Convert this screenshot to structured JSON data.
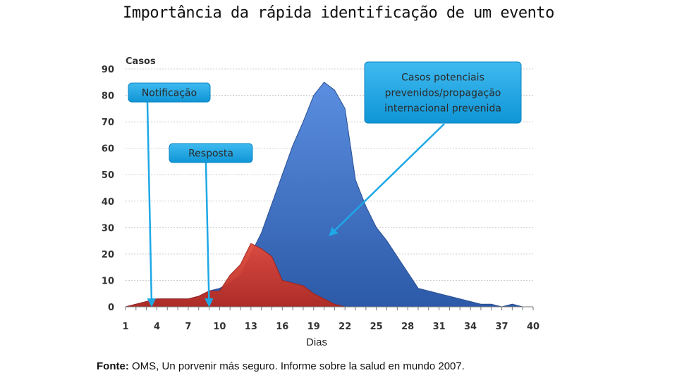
{
  "title": "Importância da rápida identificação de um evento",
  "source": {
    "label": "Fonte:",
    "text": " OMS, Un porvenir más seguro. Informe sobre la salud en mundo 2007."
  },
  "colors": {
    "blue": "#3d73c4",
    "red": "#c8322a",
    "callout": "#1ea8e6",
    "arrow": "#1ea8e6"
  },
  "chart_data": {
    "type": "area",
    "title": "",
    "xlabel": "Dias",
    "ylabel": "Casos",
    "xlim": [
      1,
      40
    ],
    "ylim": [
      0,
      90
    ],
    "x_ticks": [
      1,
      4,
      7,
      10,
      13,
      16,
      19,
      22,
      25,
      28,
      31,
      34,
      37,
      40
    ],
    "y_ticks": [
      0,
      10,
      20,
      30,
      40,
      50,
      60,
      70,
      80,
      90
    ],
    "grid": true,
    "series": [
      {
        "name": "",
        "color": "#3d73c4",
        "x": [
          1,
          2,
          3,
          4,
          5,
          6,
          7,
          8,
          9,
          10,
          11,
          12,
          13,
          14,
          15,
          16,
          17,
          18,
          19,
          20,
          21,
          22,
          23,
          24,
          25,
          26,
          27,
          28,
          29,
          30,
          31,
          32,
          33,
          34,
          35,
          36,
          37,
          38,
          39,
          40
        ],
        "values": [
          0,
          1,
          2,
          3,
          3,
          3,
          3,
          4,
          6,
          7,
          9,
          12,
          20,
          28,
          39,
          50,
          61,
          70,
          80,
          85,
          82,
          75,
          48,
          38,
          30,
          25,
          19,
          13,
          7,
          6,
          5,
          4,
          3,
          2,
          1,
          1,
          0,
          1,
          0,
          0
        ]
      },
      {
        "name": "",
        "color": "#c8322a",
        "x": [
          1,
          2,
          3,
          4,
          5,
          6,
          7,
          8,
          9,
          10,
          11,
          12,
          13,
          14,
          15,
          16,
          17,
          18,
          19,
          20,
          21,
          22,
          23
        ],
        "values": [
          0,
          1,
          2,
          3,
          3,
          3,
          3,
          4,
          6,
          6,
          12,
          16,
          24,
          22,
          19,
          10,
          9,
          8,
          5,
          3,
          1,
          0,
          0
        ]
      }
    ],
    "annotations": [
      {
        "text": "Notificação",
        "x": 3.5,
        "y": 0
      },
      {
        "text": "Resposta",
        "x": 9,
        "y": 0
      },
      {
        "text": "Casos potenciais prevenidos/propagação internacional prevenida",
        "lines": [
          "Casos potenciais",
          "prevenidos/propagação",
          "internacional prevenida"
        ],
        "x": 20,
        "y": 27
      }
    ]
  }
}
